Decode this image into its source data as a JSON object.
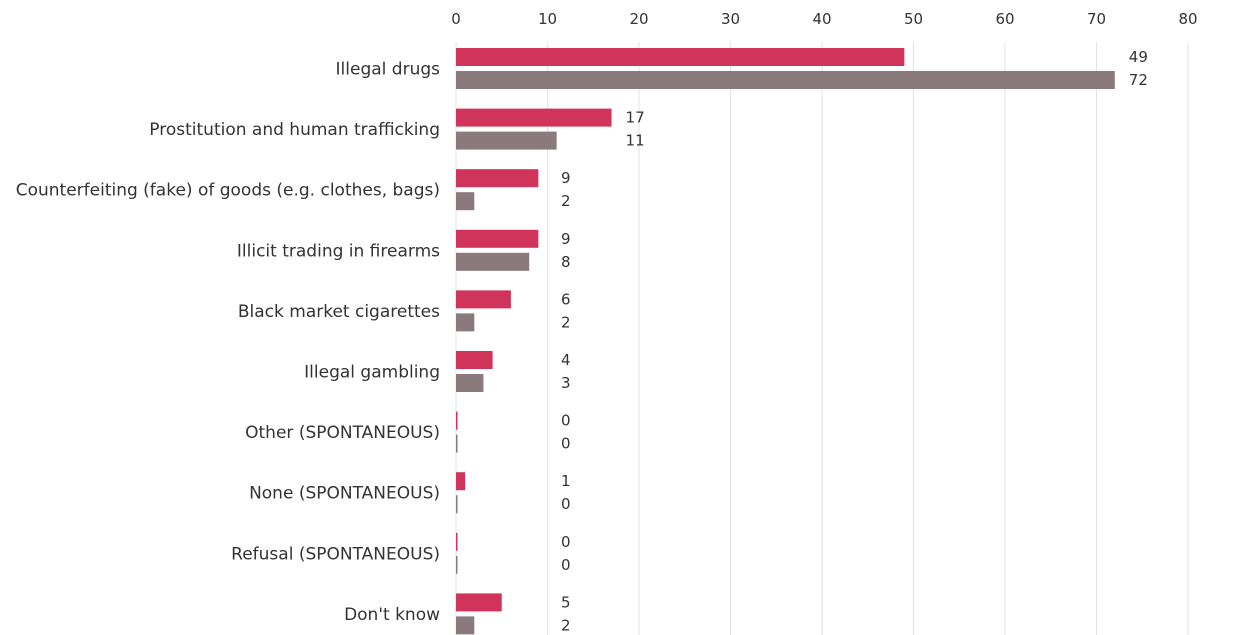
{
  "chart_data": {
    "type": "bar",
    "orientation": "horizontal",
    "grid": true,
    "xlim": [
      0,
      80
    ],
    "xticks": [
      0,
      10,
      20,
      30,
      40,
      50,
      60,
      70,
      80
    ],
    "tick_labels": [
      "0",
      "10",
      "20",
      "30",
      "40",
      "50",
      "60",
      "70",
      "80"
    ],
    "categories": [
      "Illegal drugs",
      "Prostitution and human trafficking",
      "Counterfeiting (fake) of goods (e.g. clothes, bags)",
      "Illicit trading in firearms",
      "Black market cigarettes",
      "Illegal gambling",
      "Other (SPONTANEOUS)",
      "None (SPONTANEOUS)",
      "Refusal (SPONTANEOUS)",
      "Don't know"
    ],
    "series": [
      {
        "color": "#d1345b",
        "values": [
          49,
          17,
          9,
          9,
          6,
          4,
          0,
          1,
          0,
          5
        ],
        "value_labels": [
          "49",
          "17",
          "9",
          "9",
          "6",
          "4",
          "0",
          "1",
          "0",
          "5"
        ]
      },
      {
        "color": "#8a7a7b",
        "values": [
          72,
          11,
          2,
          8,
          2,
          3,
          0,
          0,
          0,
          2
        ],
        "value_labels": [
          "72",
          "11",
          "2",
          "8",
          "2",
          "3",
          "0",
          "0",
          "0",
          "2"
        ]
      }
    ]
  }
}
